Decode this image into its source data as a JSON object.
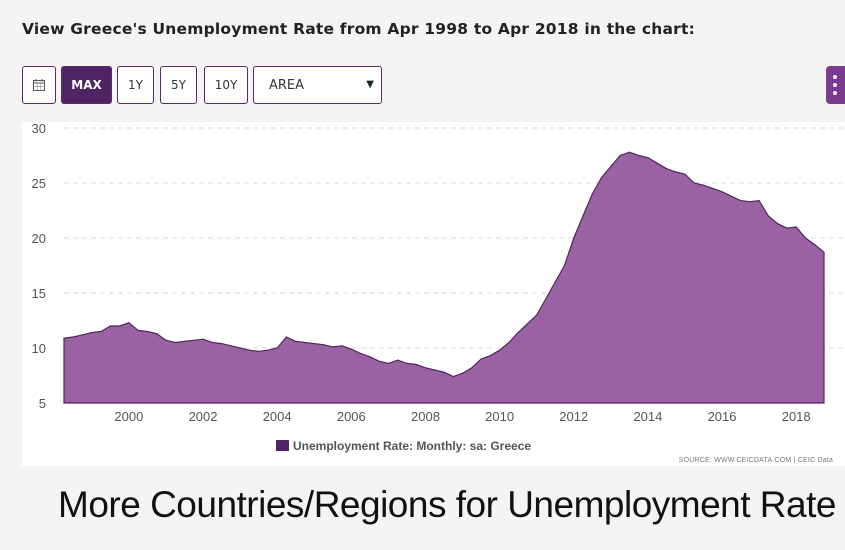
{
  "heading": "View Greece's Unemployment Rate from Apr 1998 to Apr 2018 in the chart:",
  "toolbar": {
    "calendar_icon": "calendar-icon",
    "range_buttons": [
      "MAX",
      "1Y",
      "5Y",
      "10Y"
    ],
    "active_range": "MAX",
    "chart_type_selected": "AREA",
    "menu_icon": "vertical-dots-icon"
  },
  "colors": {
    "accent": "#4f2462",
    "area_fill": "#9a62a2",
    "area_stroke": "#4d2a5a"
  },
  "chart_data": {
    "type": "area",
    "title": "",
    "xlabel": "",
    "ylabel": "",
    "ylim": [
      5,
      30
    ],
    "xlim": [
      "1998-04",
      "2018-10"
    ],
    "y_ticks": [
      30,
      25,
      20,
      15,
      10,
      5
    ],
    "x_ticks": [
      "2000",
      "2002",
      "2004",
      "2006",
      "2008",
      "2010",
      "2012",
      "2014",
      "2016",
      "2018"
    ],
    "grid": true,
    "legend_position": "bottom-center",
    "series": [
      {
        "name": "Unemployment Rate: Monthly: sa: Greece",
        "x": [
          "1998-04",
          "1998-07",
          "1998-10",
          "1999-01",
          "1999-04",
          "1999-07",
          "1999-10",
          "2000-01",
          "2000-04",
          "2000-07",
          "2000-10",
          "2001-01",
          "2001-04",
          "2001-07",
          "2001-10",
          "2002-01",
          "2002-04",
          "2002-07",
          "2002-10",
          "2003-01",
          "2003-04",
          "2003-07",
          "2003-10",
          "2004-01",
          "2004-04",
          "2004-07",
          "2004-10",
          "2005-01",
          "2005-04",
          "2005-07",
          "2005-10",
          "2006-01",
          "2006-04",
          "2006-07",
          "2006-10",
          "2007-01",
          "2007-04",
          "2007-07",
          "2007-10",
          "2008-01",
          "2008-04",
          "2008-07",
          "2008-10",
          "2009-01",
          "2009-04",
          "2009-07",
          "2009-10",
          "2010-01",
          "2010-04",
          "2010-07",
          "2010-10",
          "2011-01",
          "2011-04",
          "2011-07",
          "2011-10",
          "2012-01",
          "2012-04",
          "2012-07",
          "2012-10",
          "2013-01",
          "2013-04",
          "2013-07",
          "2013-10",
          "2014-01",
          "2014-04",
          "2014-07",
          "2014-10",
          "2015-01",
          "2015-04",
          "2015-07",
          "2015-10",
          "2016-01",
          "2016-04",
          "2016-07",
          "2016-10",
          "2017-01",
          "2017-04",
          "2017-07",
          "2017-10",
          "2018-01",
          "2018-04",
          "2018-07",
          "2018-10"
        ],
        "values": [
          10.9,
          11.0,
          11.2,
          11.4,
          11.5,
          12.0,
          12.0,
          12.3,
          11.6,
          11.5,
          11.3,
          10.7,
          10.5,
          10.6,
          10.7,
          10.8,
          10.5,
          10.4,
          10.2,
          10.0,
          9.8,
          9.7,
          9.8,
          10.0,
          11.0,
          10.6,
          10.5,
          10.4,
          10.3,
          10.1,
          10.2,
          9.9,
          9.5,
          9.2,
          8.8,
          8.6,
          8.9,
          8.6,
          8.5,
          8.2,
          8.0,
          7.8,
          7.4,
          7.7,
          8.2,
          9.0,
          9.3,
          9.8,
          10.5,
          11.4,
          12.2,
          13.0,
          14.5,
          16.0,
          17.5,
          20.0,
          22.0,
          24.0,
          25.5,
          26.5,
          27.5,
          27.8,
          27.5,
          27.3,
          26.8,
          26.3,
          26.0,
          25.8,
          25.0,
          24.8,
          24.5,
          24.2,
          23.8,
          23.4,
          23.3,
          23.4,
          22.0,
          21.3,
          20.9,
          21.0,
          20.0,
          19.4,
          18.7
        ]
      }
    ],
    "source": "SOURCE: WWW.CEICDATA.COM | CEIC Data"
  },
  "footer_title": "More Countries/Regions for Unemployment Rate"
}
